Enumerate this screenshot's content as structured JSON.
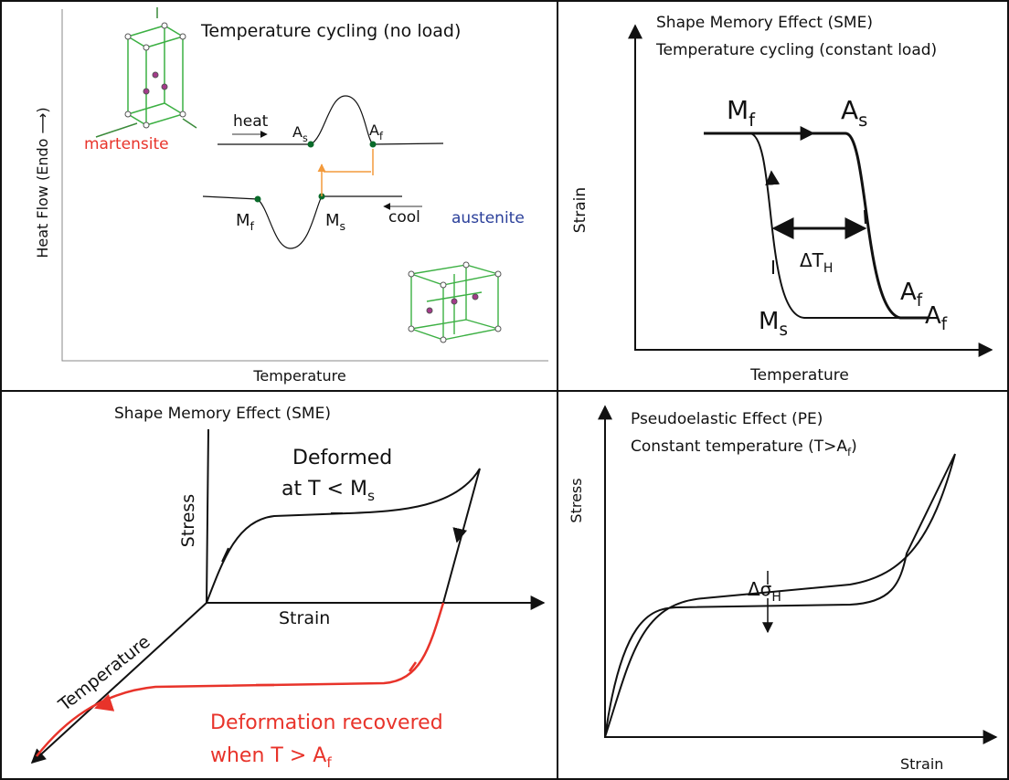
{
  "panels": [
    {
      "title": "Temperature cycling (no load)",
      "y_label": "Heat Flow (Endo ⟶)",
      "x_label": "Temperature",
      "phases": [
        "martensite",
        "austenite"
      ],
      "arrows": [
        "heat",
        "cool"
      ],
      "points": [
        {
          "main": "A",
          "sub": "s"
        },
        {
          "main": "A",
          "sub": "f"
        },
        {
          "main": "M",
          "sub": "f"
        },
        {
          "main": "M",
          "sub": "s"
        }
      ]
    },
    {
      "title": [
        "Shape Memory Effect (SME)",
        "Temperature cycling (constant load)"
      ],
      "y_label": "Strain",
      "x_label": "Temperature",
      "labels": [
        {
          "main": "M",
          "sub": "f"
        },
        {
          "main": "A",
          "sub": "s"
        },
        {
          "main": "ΔT",
          "sub": "H"
        },
        {
          "main": "A",
          "sub": "f"
        },
        {
          "main": "A",
          "sub": "f"
        },
        {
          "main": "M",
          "sub": "s"
        }
      ]
    },
    {
      "title": "Shape Memory Effect (SME)",
      "deformed": {
        "line1": "Deformed",
        "line2": {
          "main": "at T < M",
          "sub": "s"
        }
      },
      "axes": [
        "Stress",
        "Strain",
        "Temperature"
      ],
      "recovered": {
        "line1": "Deformation recovered",
        "line2": {
          "main": "when T > A",
          "sub": "f"
        }
      }
    },
    {
      "title": [
        "Pseudoelastic Effect (PE)",
        {
          "main": "Constant temperature (T>A",
          "sub": "f",
          "tail": ")"
        }
      ],
      "y_label": "Stress",
      "x_label": "Strain",
      "delta": {
        "main": "Δσ",
        "sub": "H"
      }
    }
  ]
}
